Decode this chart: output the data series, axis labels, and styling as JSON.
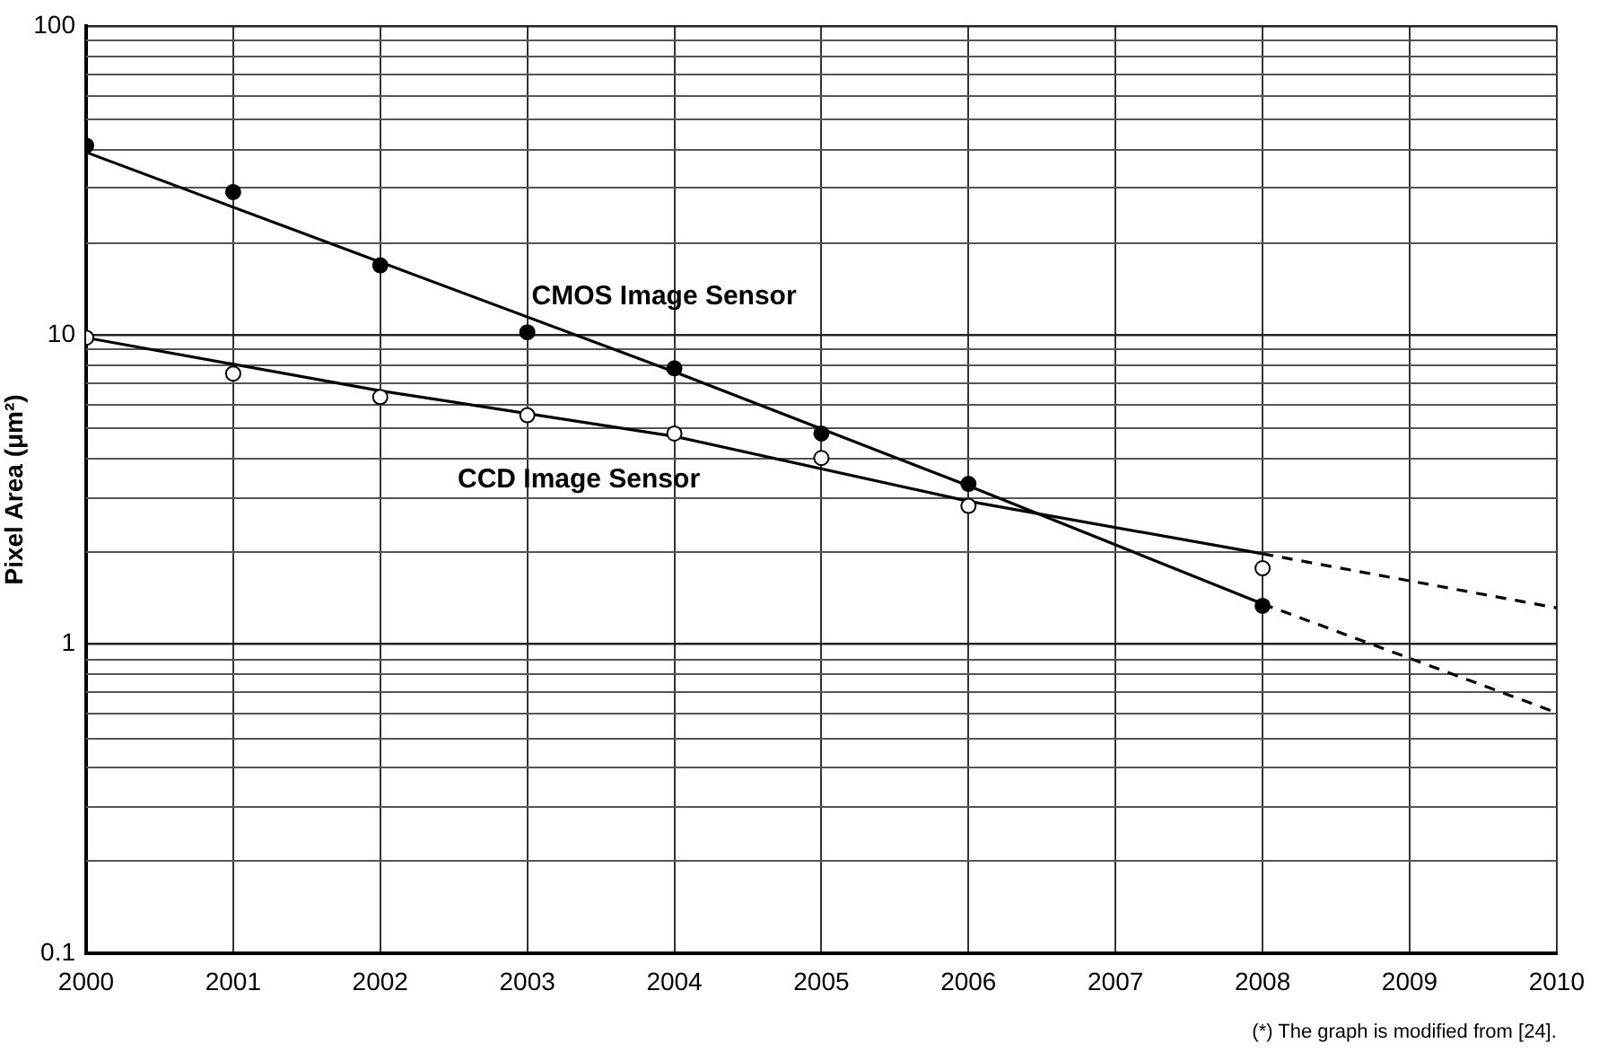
{
  "chart_data": {
    "type": "scatter",
    "ylabel": "Pixel Area (μm²)",
    "log": "y",
    "grid": true,
    "legend": false,
    "marker": "circle",
    "xlim": [
      2000,
      2010
    ],
    "xticks": [
      2000,
      2001,
      2002,
      2003,
      2004,
      2005,
      2006,
      2007,
      2008,
      2009,
      2010
    ],
    "ylim": [
      0.1,
      100
    ],
    "yticks": [
      0.1,
      1,
      10,
      100
    ],
    "series": [
      {
        "type": "scatter",
        "color": "#000000",
        "x": [
          2000,
          2001,
          2002,
          2003,
          2004,
          2005,
          2006,
          2008
        ],
        "values": [
          41,
          29,
          16.8,
          10.2,
          7.8,
          4.8,
          3.3,
          1.33
        ]
      },
      {
        "type": "scatter",
        "color": "#ffffff",
        "x": [
          2000,
          2001,
          2002,
          2003,
          2004,
          2005,
          2006,
          2008
        ],
        "values": [
          9.8,
          7.5,
          6.3,
          5.5,
          4.8,
          4.0,
          2.8,
          1.76
        ]
      },
      {
        "type": "line",
        "color": "#000000",
        "line_style": "solid",
        "marker": "none",
        "x": [
          2000,
          2004,
          2006,
          2008
        ],
        "values": [
          39,
          7.6,
          3.25,
          1.35
        ]
      },
      {
        "type": "line",
        "color": "#000000",
        "line_style": "dashed",
        "marker": "none",
        "x": [
          2008,
          2010
        ],
        "values": [
          1.35,
          0.6
        ]
      },
      {
        "type": "line",
        "color": "#000000",
        "line_style": "solid",
        "marker": "none",
        "x": [
          2000,
          2002,
          2004,
          2006,
          2008
        ],
        "values": [
          9.8,
          6.6,
          4.7,
          2.9,
          1.96
        ]
      },
      {
        "type": "line",
        "color": "#000000",
        "line_style": "dashed",
        "marker": "none",
        "x": [
          2008,
          2010
        ],
        "values": [
          1.96,
          1.31
        ]
      }
    ],
    "annotations": [
      "CMOS Image Sensor",
      "CCD Image Sensor",
      "(*) The graph is modified from [24]."
    ]
  }
}
